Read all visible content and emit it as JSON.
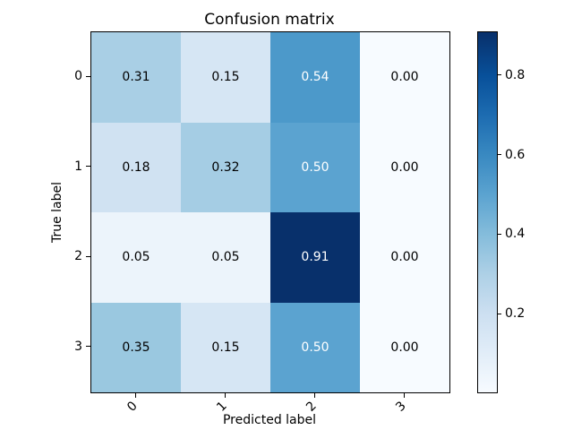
{
  "figure": {
    "background": "#ffffff"
  },
  "chart_data": {
    "type": "heatmap",
    "title": "Confusion matrix",
    "xlabel": "Predicted label",
    "ylabel": "True label",
    "x_tick_labels": [
      "0",
      "1",
      "2",
      "3"
    ],
    "y_tick_labels": [
      "0",
      "1",
      "2",
      "3"
    ],
    "matrix": [
      [
        0.31,
        0.15,
        0.54,
        0.0
      ],
      [
        0.18,
        0.32,
        0.5,
        0.0
      ],
      [
        0.05,
        0.05,
        0.91,
        0.0
      ],
      [
        0.35,
        0.15,
        0.5,
        0.0
      ]
    ],
    "cell_labels": [
      [
        "0.31",
        "0.15",
        "0.54",
        "0.00"
      ],
      [
        "0.18",
        "0.32",
        "0.50",
        "0.00"
      ],
      [
        "0.05",
        "0.05",
        "0.91",
        "0.00"
      ],
      [
        "0.35",
        "0.15",
        "0.50",
        "0.00"
      ]
    ],
    "cell_colors": [
      [
        "#a9cfe5",
        "#d6e6f4",
        "#4c99ca",
        "#f7fbff"
      ],
      [
        "#d0e2f2",
        "#a5cde4",
        "#5ba3d0",
        "#f7fbff"
      ],
      [
        "#ecf4fb",
        "#ecf4fb",
        "#08306b",
        "#f7fbff"
      ],
      [
        "#9ac8e0",
        "#d6e6f4",
        "#5ba3d0",
        "#f7fbff"
      ]
    ],
    "cell_text_colors": [
      [
        "#000000",
        "#000000",
        "#ffffff",
        "#000000"
      ],
      [
        "#000000",
        "#000000",
        "#ffffff",
        "#000000"
      ],
      [
        "#000000",
        "#000000",
        "#ffffff",
        "#000000"
      ],
      [
        "#000000",
        "#000000",
        "#ffffff",
        "#000000"
      ]
    ],
    "colormap": "Blues",
    "vmin": 0.0,
    "vmax": 0.91,
    "x_tick_rotation_deg": 45,
    "grid": false,
    "legend": "none",
    "colorbar": {
      "position": "right",
      "ticks": [
        0.8,
        0.6,
        0.4,
        0.2
      ],
      "tick_labels": [
        "0.8",
        "0.6",
        "0.4",
        "0.2"
      ],
      "gradient_stops": [
        {
          "pos": 0.0,
          "color": "#08306b"
        },
        {
          "pos": 0.121,
          "color": "#08509a"
        },
        {
          "pos": 0.231,
          "color": "#1d6cb1"
        },
        {
          "pos": 0.341,
          "color": "#3989c1"
        },
        {
          "pos": 0.451,
          "color": "#5ba3d0"
        },
        {
          "pos": 0.56,
          "color": "#84bcdb"
        },
        {
          "pos": 0.67,
          "color": "#add0e6"
        },
        {
          "pos": 0.78,
          "color": "#ccdff1"
        },
        {
          "pos": 0.89,
          "color": "#e1edf8"
        },
        {
          "pos": 1.0,
          "color": "#f7fbff"
        }
      ]
    }
  }
}
